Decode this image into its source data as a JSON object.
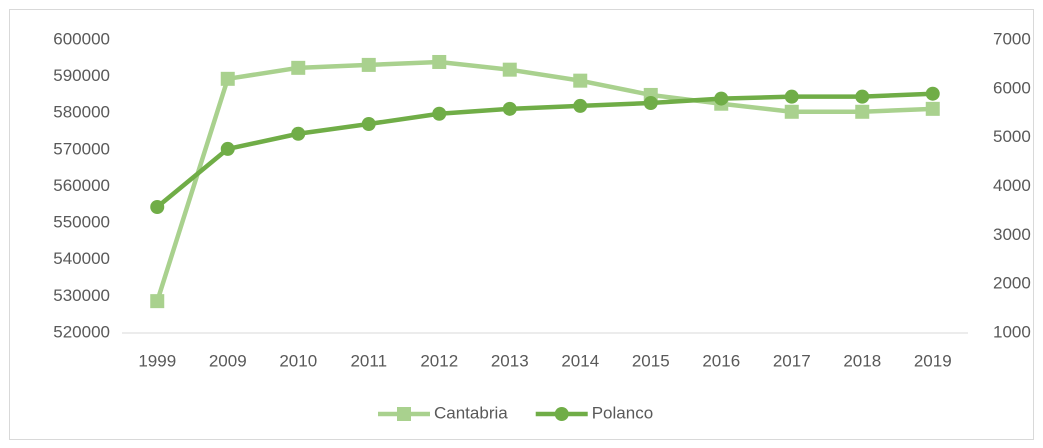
{
  "chart_data": {
    "type": "line",
    "categories": [
      "1999",
      "2009",
      "2010",
      "2011",
      "2012",
      "2013",
      "2014",
      "2015",
      "2016",
      "2017",
      "2018",
      "2019"
    ],
    "series": [
      {
        "name": "Cantabria",
        "color": "#a9d18e",
        "marker": "square",
        "axis": "y",
        "values": [
          528700,
          589400,
          592400,
          593200,
          594000,
          591900,
          588900,
          585000,
          582600,
          580400,
          580400,
          581200
        ]
      },
      {
        "name": "Polanco",
        "color": "#70ad47",
        "marker": "circle",
        "axis": "y2",
        "values": [
          3580,
          4770,
          5080,
          5280,
          5490,
          5590,
          5650,
          5710,
          5800,
          5840,
          5840,
          5900
        ]
      }
    ],
    "ylim": [
      520000,
      600000
    ],
    "yticks": [
      520000,
      530000,
      540000,
      550000,
      560000,
      570000,
      580000,
      590000,
      600000
    ],
    "y2lim": [
      1000,
      7000
    ],
    "y2ticks": [
      1000,
      2000,
      3000,
      4000,
      5000,
      6000,
      7000
    ],
    "legend": "bottom"
  }
}
